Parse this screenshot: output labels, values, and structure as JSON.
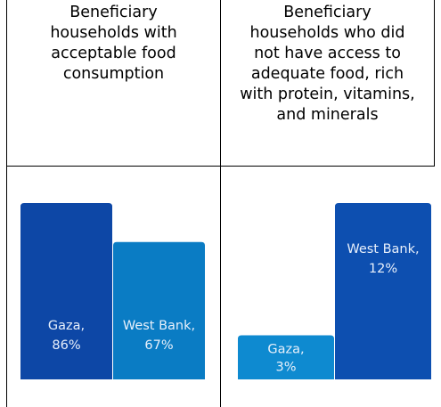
{
  "table": {
    "headers": [
      "Beneficiary households with acceptable food consumption",
      "Beneficiary households who did not have access to adequate food, rich with protein, vitamins, and minerals"
    ],
    "header_lines": [
      [
        "Beneficiary",
        "households with",
        "acceptable food",
        "consumption"
      ],
      [
        "Beneficiary",
        "households who did",
        "not have access to",
        "adequate food, rich",
        "with protein, vitamins,",
        "and minerals"
      ]
    ]
  },
  "colors": {
    "gaza_left": "#0d47a6",
    "west_bank_left": "#0a7cc4",
    "gaza_right": "#0e8ad0",
    "west_bank_right": "#0d4fb0"
  },
  "chart_data": [
    {
      "type": "bar",
      "categories": [
        "Gaza",
        "West Bank"
      ],
      "values": [
        86,
        67
      ],
      "labels": [
        [
          "Gaza,",
          "86%"
        ],
        [
          "West Bank,",
          "67%"
        ]
      ],
      "ylim": [
        0,
        86
      ]
    },
    {
      "type": "bar",
      "categories": [
        "Gaza",
        "West Bank"
      ],
      "values": [
        3,
        12
      ],
      "labels": [
        [
          "Gaza,",
          "3%"
        ],
        [
          "West Bank,",
          "12%"
        ]
      ],
      "ylim": [
        0,
        12
      ]
    }
  ]
}
